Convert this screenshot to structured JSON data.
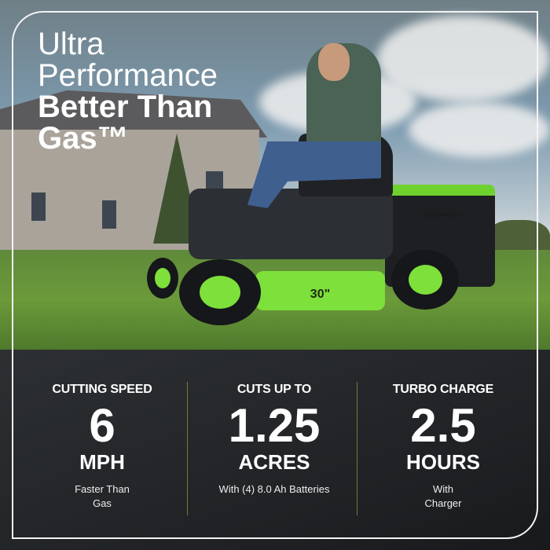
{
  "headline": {
    "line1": "Ultra",
    "line2": "Performance",
    "line3": "Better Than",
    "line4": "Gas™"
  },
  "product": {
    "logo": "greenworks",
    "deck_size": "30\""
  },
  "stats": [
    {
      "label": "CUTTING SPEED",
      "value": "6",
      "unit": "MPH",
      "note1": "Faster Than",
      "note2": "Gas"
    },
    {
      "label": "CUTS UP TO",
      "value": "1.25",
      "unit": "ACRES",
      "note1": "With (4) 8.0 Ah Batteries",
      "note2": ""
    },
    {
      "label": "TURBO CHARGE",
      "value": "2.5",
      "unit": "HOURS",
      "note1": "With",
      "note2": "Charger"
    }
  ],
  "colors": {
    "brand_green": "#7ee03a",
    "panel": "#222427",
    "divider": "#6f7d40"
  }
}
